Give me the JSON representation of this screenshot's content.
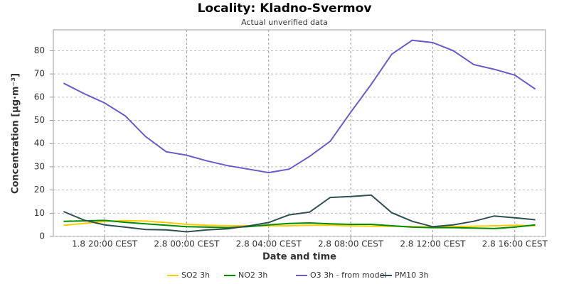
{
  "chart_data": {
    "type": "line",
    "title": "Locality: Kladno-Svermov",
    "subtitle": "Actual unverified data",
    "x_label": "Date and time",
    "y_label": "Concentration [µg·m⁻³]",
    "categories": [
      null,
      null,
      "1.8 20:00 CEST",
      null,
      null,
      null,
      "2.8 00:00 CEST",
      null,
      null,
      null,
      "2.8 04:00 CEST",
      null,
      null,
      null,
      "2.8 08:00 CEST",
      null,
      null,
      null,
      "2.8 12:00 CEST",
      null,
      null,
      null,
      "2.8 16:00 CEST",
      null
    ],
    "series": [
      {
        "name": "SO2 3h",
        "color": "#ffcc00",
        "values": [
          4.8,
          5.6,
          6.5,
          6.8,
          6.6,
          6,
          5.2,
          4.8,
          4.6,
          4.6,
          4.6,
          4.6,
          4.8,
          4.8,
          4.6,
          4.4,
          4.4,
          4.2,
          4,
          4.2,
          4.4,
          4.6,
          4.8,
          4.6
        ]
      },
      {
        "name": "NO2 3h",
        "color": "#008c00",
        "values": [
          6.5,
          6.7,
          6.9,
          6.1,
          5.4,
          4.8,
          4.2,
          4,
          3.8,
          4.2,
          5,
          5.6,
          5.8,
          5.4,
          5.2,
          5.2,
          4.6,
          4,
          3.8,
          3.8,
          3.6,
          3.4,
          4,
          5
        ]
      },
      {
        "name": "O3 3h - from model",
        "color": "#6a5acd",
        "values": [
          66,
          61.5,
          57.5,
          52,
          43,
          36.5,
          35,
          32.5,
          30.5,
          29,
          27.5,
          29,
          34.5,
          41,
          53.5,
          65.5,
          78.5,
          84.5,
          83.5,
          80,
          74,
          72,
          69.5,
          63.5
        ]
      },
      {
        "name": "PM10 3h",
        "color": "#2f4f4f",
        "values": [
          10.7,
          7,
          5,
          4,
          3,
          2.8,
          2,
          2.8,
          3.3,
          4.5,
          6,
          9.3,
          10.5,
          16.8,
          17.2,
          17.8,
          10.2,
          6.5,
          4.2,
          5,
          6.5,
          8.8,
          8,
          7.2
        ]
      }
    ],
    "ylim": [
      0,
      89
    ],
    "yticks": [
      0,
      10,
      20,
      30,
      40,
      50,
      60,
      70,
      80
    ],
    "grid": true
  }
}
